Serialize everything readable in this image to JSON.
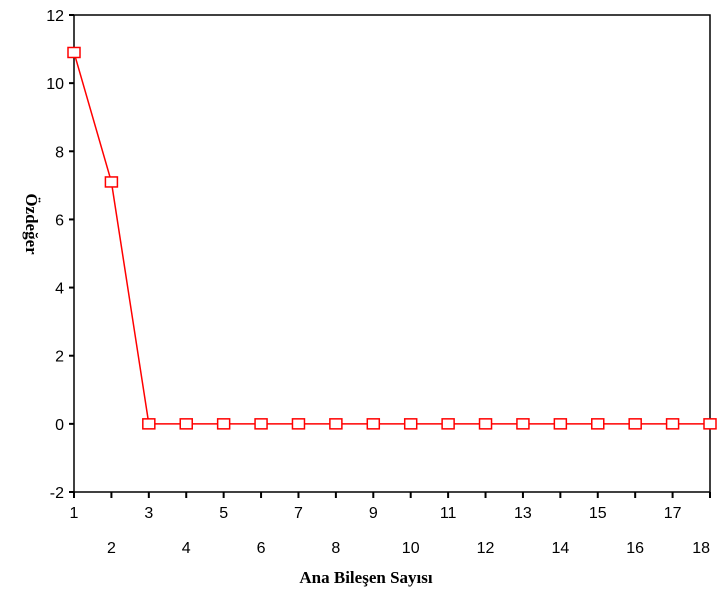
{
  "chart_data": {
    "type": "line",
    "title": "",
    "xlabel": "Ana Bileşen Sayısı",
    "ylabel": "Özdeğer",
    "x": [
      1,
      2,
      3,
      4,
      5,
      6,
      7,
      8,
      9,
      10,
      11,
      12,
      13,
      14,
      15,
      16,
      17,
      18
    ],
    "series": [
      {
        "values": [
          10.9,
          7.1,
          0,
          0,
          0,
          0,
          0,
          0,
          0,
          0,
          0,
          0,
          0,
          0,
          0,
          0,
          0,
          0
        ],
        "color": "#ff0000",
        "marker": "square-open"
      }
    ],
    "xlim": [
      1,
      18
    ],
    "ylim": [
      -2,
      12
    ],
    "yticks": [
      "-2",
      "0",
      "2",
      "4",
      "6",
      "8",
      "10",
      "12"
    ],
    "xticks_odd": [
      "1",
      "3",
      "5",
      "7",
      "9",
      "11",
      "13",
      "15",
      "17"
    ],
    "xticks_even": [
      "2",
      "4",
      "6",
      "8",
      "10",
      "12",
      "14",
      "16",
      "18"
    ],
    "grid": false,
    "legend": "none"
  }
}
